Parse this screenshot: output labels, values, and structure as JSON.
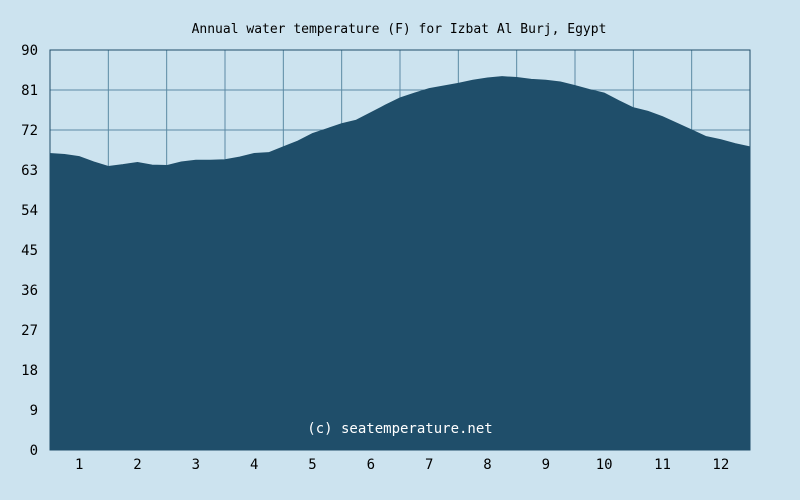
{
  "chart_data": {
    "type": "area",
    "title": "Annual water temperature (F) for Izbat Al Burj, Egypt",
    "credit": "(c) seatemperature.net",
    "xlabel": "",
    "ylabel": "",
    "ylim": [
      0,
      90
    ],
    "xlim": [
      0.5,
      12.5
    ],
    "y_ticks": [
      "0",
      "9",
      "18",
      "27",
      "36",
      "45",
      "54",
      "63",
      "72",
      "81",
      "90"
    ],
    "x_ticks": [
      "1",
      "2",
      "3",
      "4",
      "5",
      "6",
      "7",
      "8",
      "9",
      "10",
      "11",
      "12"
    ],
    "grid": true,
    "series": [
      {
        "x": [
          0.5,
          0.75,
          1.0,
          1.25,
          1.5,
          1.75,
          2.0,
          2.25,
          2.5,
          2.75,
          3.0,
          3.25,
          3.5,
          3.75,
          4.0,
          4.25,
          4.5,
          4.75,
          5.0,
          5.25,
          5.5,
          5.75,
          6.0,
          6.25,
          6.5,
          6.75,
          7.0,
          7.25,
          7.5,
          7.75,
          8.0,
          8.25,
          8.5,
          8.75,
          9.0,
          9.25,
          9.5,
          9.75,
          10.0,
          10.25,
          10.5,
          10.75,
          11.0,
          11.25,
          11.5,
          11.75,
          12.0,
          12.25,
          12.5
        ],
        "values": [
          66.7,
          66.5,
          66.0,
          64.8,
          63.8,
          64.2,
          64.7,
          64.1,
          64.0,
          64.8,
          65.2,
          65.2,
          65.3,
          65.9,
          66.7,
          66.9,
          68.2,
          69.5,
          71.2,
          72.3,
          73.4,
          74.2,
          75.9,
          77.6,
          79.2,
          80.3,
          81.3,
          81.9,
          82.5,
          83.2,
          83.7,
          84.0,
          83.8,
          83.4,
          83.2,
          82.8,
          82.0,
          81.1,
          80.3,
          78.6,
          77.0,
          76.2,
          75.0,
          73.5,
          72.0,
          70.5,
          69.8,
          68.9,
          68.2
        ],
        "color": "#1f4e6a"
      }
    ],
    "colors": {
      "background": "#cce3ef",
      "area_fill": "#1f4e6a",
      "grid_line": "#5b8aa4",
      "axis": "#1f4e6a"
    }
  }
}
